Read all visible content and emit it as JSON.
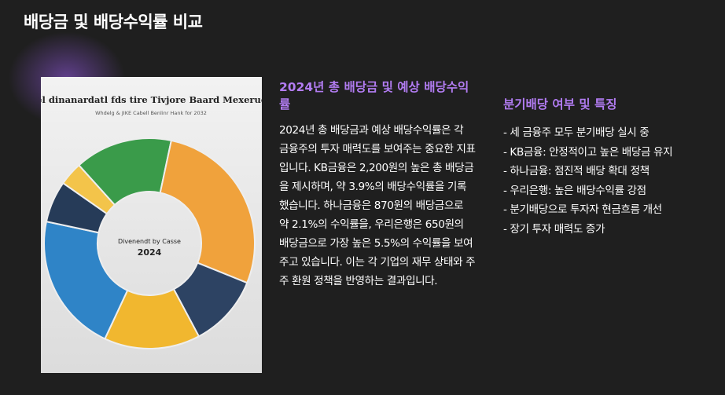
{
  "header": {
    "title": "배당금 및 배당수익률 비교"
  },
  "image": {
    "title": "eriel dinanardatl fds tire Tivjore Baard Mexerucigi",
    "subtitle": "Whdelg & JIKE Cabell Benlinr Hank for 2032",
    "center_caption": "Divenendt by Casse",
    "center_year": "2024"
  },
  "middle": {
    "heading": "2024년 총 배당금 및 예상 배당수익률",
    "body": "2024년 총 배당금과 예상 배당수익률은 각 금융주의 투자 매력도를 보여주는 중요한 지표입니다. KB금융은 2,200원의 높은 총 배당금을 제시하며, 약 3.9%의 배당수익률을 기록했습니다. 하나금융은 870원의 배당금으로 약 2.1%의 수익률을, 우리은행은 650원의 배당금으로 가장 높은 5.5%의 수익률을 보여주고 있습니다. 이는 각 기업의 재무 상태와 주주 환원 정책을 반영하는 결과입니다."
  },
  "right": {
    "heading": "분기배당 여부 및 특징",
    "items": [
      "- 세 금융주 모두 분기배당 실시 중",
      "- KB금융: 안정적이고 높은 배당금 유지",
      "- 하나금융: 점진적 배당 확대 정책",
      "- 우리은행: 높은 배당수익률 강점",
      "- 분기배당으로 투자자 현금흐름 개선",
      "- 장기 투자 매력도 증가"
    ]
  }
}
